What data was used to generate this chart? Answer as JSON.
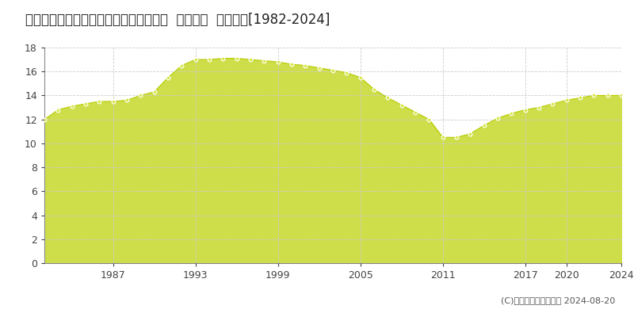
{
  "title": "福島県いわき市常磐関船町堀田９番３外  地価公示  地価推移[1982-2024]",
  "years": [
    1982,
    1983,
    1984,
    1985,
    1986,
    1987,
    1988,
    1989,
    1990,
    1991,
    1992,
    1993,
    1994,
    1995,
    1996,
    1997,
    1998,
    1999,
    2000,
    2001,
    2002,
    2003,
    2004,
    2005,
    2006,
    2007,
    2008,
    2009,
    2010,
    2011,
    2012,
    2013,
    2014,
    2015,
    2016,
    2017,
    2018,
    2019,
    2020,
    2021,
    2022,
    2023,
    2024
  ],
  "values": [
    12.0,
    12.8,
    13.1,
    13.3,
    13.5,
    13.5,
    13.6,
    14.0,
    14.3,
    15.5,
    16.5,
    17.0,
    17.0,
    17.1,
    17.1,
    17.0,
    16.9,
    16.8,
    16.6,
    16.5,
    16.3,
    16.1,
    15.9,
    15.5,
    14.5,
    13.8,
    13.2,
    12.6,
    12.0,
    10.5,
    10.5,
    10.8,
    11.5,
    12.1,
    12.5,
    12.8,
    13.0,
    13.3,
    13.6,
    13.8,
    14.0,
    14.0,
    14.0
  ],
  "fill_color": "#cede4a",
  "line_color": "#b8cc00",
  "marker_facecolor": "#d8e84a",
  "marker_edgecolor": "#ffffff",
  "bg_color": "#ffffff",
  "plot_bg_color": "#ffffff",
  "grid_color": "#cccccc",
  "ylim": [
    0,
    18
  ],
  "yticks": [
    0,
    2,
    4,
    6,
    8,
    10,
    12,
    14,
    16,
    18
  ],
  "xticks": [
    1987,
    1993,
    1999,
    2005,
    2011,
    2017,
    2020,
    2024
  ],
  "xlim": [
    1982,
    2024
  ],
  "legend_marker_color": "#c8d820",
  "copyright": "(C)土地価格ドットコム 2024-08-20",
  "title_fontsize": 12,
  "axis_fontsize": 9,
  "legend_fontsize": 10,
  "copyright_fontsize": 8
}
